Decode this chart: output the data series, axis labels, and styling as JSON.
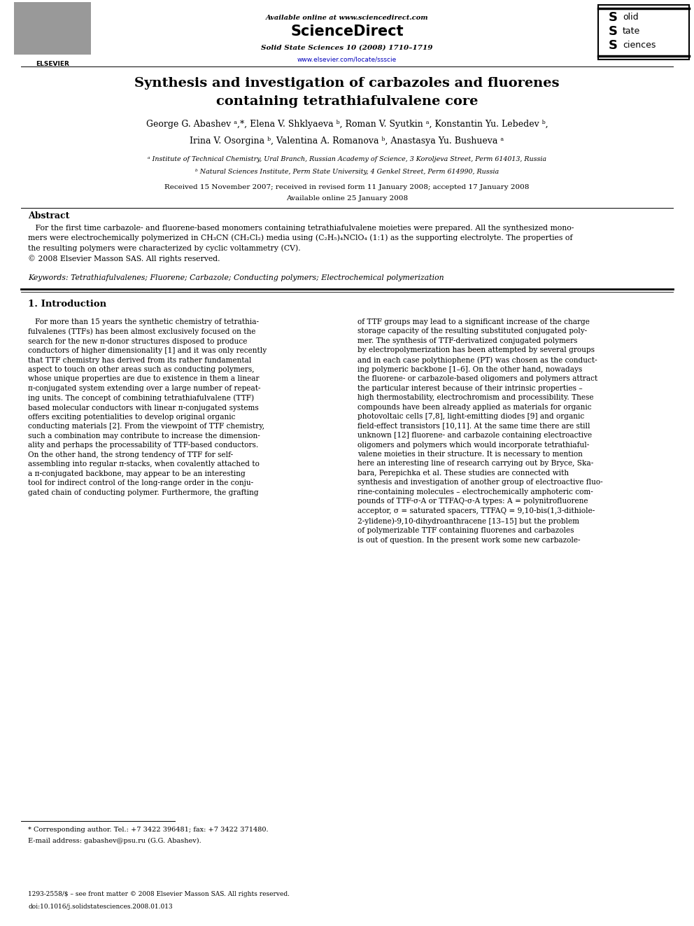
{
  "bg_color": "#ffffff",
  "page_width": 9.92,
  "page_height": 13.23,
  "header_available": "Available online at www.sciencedirect.com",
  "header_journal": "Solid State Sciences 10 (2008) 1710–1719",
  "header_url": "www.elsevier.com/locate/ssscie",
  "title_line1": "Synthesis and investigation of carbazoles and fluorenes",
  "title_line2": "containing tetrathiafulvalene core",
  "authors_line1": "George G. Abashev ᵃ,*, Elena V. Shklyaeva ᵇ, Roman V. Syutkin ᵃ, Konstantin Yu. Lebedev ᵇ,",
  "authors_line2": "Irina V. Osorgina ᵇ, Valentina A. Romanova ᵇ, Anastasya Yu. Bushueva ᵃ",
  "affil_a": "ᵃ Institute of Technical Chemistry, Ural Branch, Russian Academy of Science, 3 Koroljeva Street, Perm 614013, Russia",
  "affil_b": "ᵇ Natural Sciences Institute, Perm State University, 4 Genkel Street, Perm 614990, Russia",
  "received": "Received 15 November 2007; received in revised form 11 January 2008; accepted 17 January 2008",
  "available_online": "Available online 25 January 2008",
  "abstract_title": "Abstract",
  "abstract_body": "For the first time carbazole- and fluorene-based monomers containing tetrathiafulvalene moieties were prepared. All the synthesized mono-\nmers were electrochemically polymerized in CH₃CN (CH₂Cl₂) media using (C₂H₅)₄NClO₄ (1:1) as the supporting electrolyte. The properties of\nthe resulting polymers were characterized by cyclic voltammetry (CV).\n© 2008 Elsevier Masson SAS. All rights reserved.",
  "keywords": "Keywords: Tetrathiafulvalenes; Fluorene; Carbazole; Conducting polymers; Electrochemical polymerization",
  "sec1_title": "1. Introduction",
  "col_left": "   For more than 15 years the synthetic chemistry of tetrathia-\nfulvalenes (TTFs) has been almost exclusively focused on the\nsearch for the new π-donor structures disposed to produce\nconductors of higher dimensionality [1] and it was only recently\nthat TTF chemistry has derived from its rather fundamental\naspect to touch on other areas such as conducting polymers,\nwhose unique properties are due to existence in them a linear\nπ-conjugated system extending over a large number of repeat-\ning units. The concept of combining tetrathiafulvalene (TTF)\nbased molecular conductors with linear π-conjugated systems\noffers exciting potentialities to develop original organic\nconducting materials [2]. From the viewpoint of TTF chemistry,\nsuch a combination may contribute to increase the dimension-\nality and perhaps the processability of TTF-based conductors.\nOn the other hand, the strong tendency of TTF for self-\nassembling into regular π-stacks, when covalently attached to\na π-conjugated backbone, may appear to be an interesting\ntool for indirect control of the long-range order in the conju-\ngated chain of conducting polymer. Furthermore, the grafting",
  "col_right": "of TTF groups may lead to a significant increase of the charge\nstorage capacity of the resulting substituted conjugated poly-\nmer. The synthesis of TTF-derivatized conjugated polymers\nby electropolymerization has been attempted by several groups\nand in each case polythiophene (PT) was chosen as the conduct-\ning polymeric backbone [1–6]. On the other hand, nowadays\nthe fluorene- or carbazole-based oligomers and polymers attract\nthe particular interest because of their intrinsic properties –\nhigh thermostability, electrochromism and processibility. These\ncompounds have been already applied as materials for organic\nphotovoltaic cells [7,8], light-emitting diodes [9] and organic\nfield-effect transistors [10,11]. At the same time there are still\nunknown [12] fluorene- and carbazole containing electroactive\noligomers and polymers which would incorporate tetrathiaful-\nvalene moieties in their structure. It is necessary to mention\nhere an interesting line of research carrying out by Bryce, Ska-\nbara, Perepichka et al. These studies are connected with\nsynthesis and investigation of another group of electroactive fluo-\nrine-containing molecules – electrochemically amphoteric com-\npounds of TTF-σ-A or TTFAQ-σ-A types: A = polynitrofluorene\nacceptor, σ = saturated spacers, TTFAQ = 9,10-bis(1,3-dithiole-\n2-ylidene)-9,10-dihydroanthracene [13–15] but the problem\nof polymerizable TTF containing fluorenes and carbazoles\nis out of question. In the present work some new carbazole-",
  "fn_line1": "* Corresponding author. Tel.: +7 3422 396481; fax: +7 3422 371480.",
  "fn_line2": "E-mail address: gabashev@psu.ru (G.G. Abashev).",
  "footer1": "1293-2558/$ – see front matter © 2008 Elsevier Masson SAS. All rights reserved.",
  "footer2": "doi:10.1016/j.solidstatesciences.2008.01.013"
}
